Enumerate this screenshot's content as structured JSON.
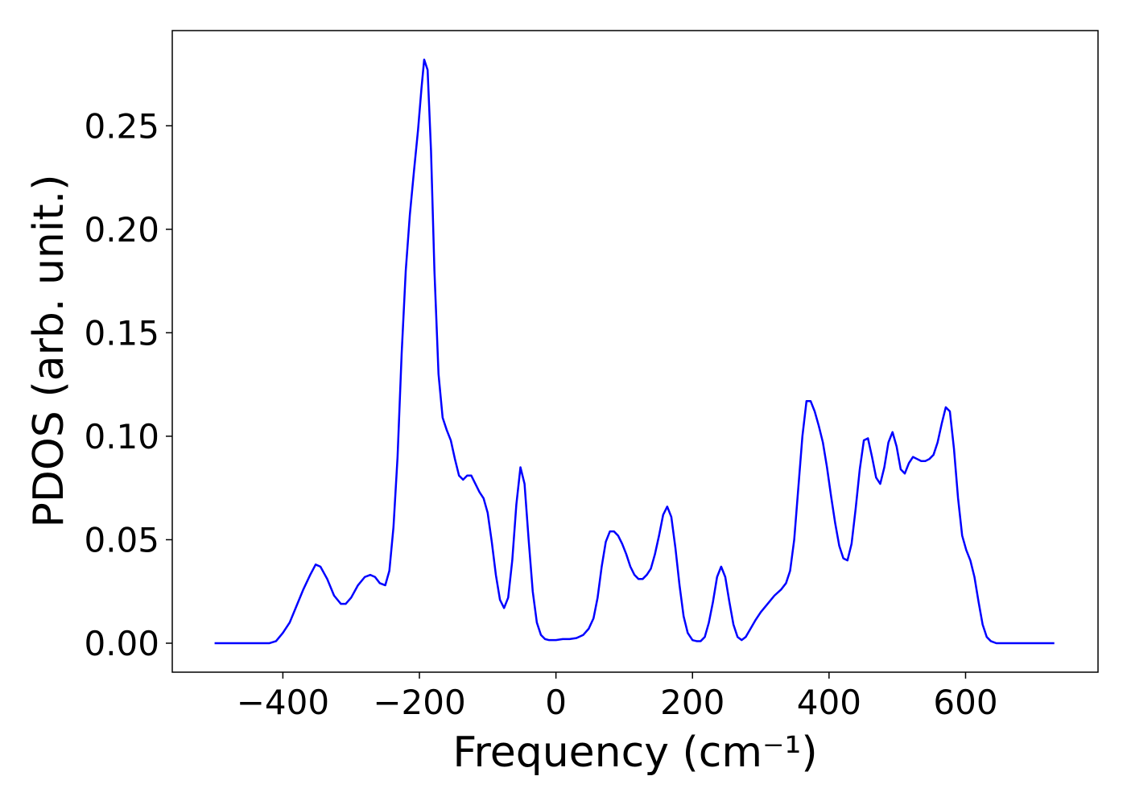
{
  "chart_data": {
    "type": "line",
    "xlabel": "Frequency (cm⁻¹)",
    "ylabel": "PDOS (arb. unit.)",
    "color": "#0000ff",
    "x": [
      -500,
      -420,
      -410,
      -400,
      -390,
      -380,
      -370,
      -360,
      -352,
      -345,
      -335,
      -325,
      -315,
      -308,
      -300,
      -290,
      -280,
      -272,
      -265,
      -258,
      -250,
      -244,
      -238,
      -232,
      -226,
      -220,
      -214,
      -208,
      -202,
      -197,
      -193,
      -188,
      -183,
      -178,
      -172,
      -166,
      -160,
      -154,
      -148,
      -142,
      -136,
      -130,
      -124,
      -118,
      -112,
      -106,
      -100,
      -94,
      -88,
      -82,
      -76,
      -70,
      -64,
      -58,
      -52,
      -46,
      -40,
      -34,
      -28,
      -22,
      -16,
      -10,
      0,
      10,
      20,
      30,
      40,
      48,
      55,
      61,
      67,
      73,
      79,
      85,
      91,
      97,
      103,
      109,
      115,
      121,
      127,
      133,
      139,
      145,
      151,
      157,
      163,
      169,
      175,
      181,
      187,
      193,
      200,
      206,
      212,
      218,
      224,
      230,
      236,
      242,
      248,
      254,
      260,
      266,
      272,
      278,
      285,
      292,
      300,
      310,
      320,
      330,
      337,
      343,
      349,
      355,
      361,
      367,
      373,
      379,
      385,
      391,
      397,
      403,
      409,
      415,
      421,
      427,
      433,
      439,
      445,
      451,
      457,
      463,
      469,
      475,
      481,
      487,
      493,
      499,
      505,
      511,
      517,
      523,
      529,
      535,
      541,
      547,
      553,
      559,
      565,
      571,
      577,
      583,
      589,
      595,
      601,
      607,
      613,
      619,
      625,
      631,
      637,
      645,
      730
    ],
    "values": [
      0,
      0,
      0.001,
      0.005,
      0.01,
      0.018,
      0.026,
      0.033,
      0.038,
      0.037,
      0.031,
      0.023,
      0.019,
      0.019,
      0.022,
      0.028,
      0.032,
      0.033,
      0.032,
      0.029,
      0.028,
      0.035,
      0.056,
      0.09,
      0.14,
      0.18,
      0.207,
      0.228,
      0.248,
      0.268,
      0.282,
      0.277,
      0.238,
      0.18,
      0.13,
      0.109,
      0.103,
      0.098,
      0.089,
      0.081,
      0.079,
      0.081,
      0.081,
      0.077,
      0.073,
      0.07,
      0.063,
      0.049,
      0.033,
      0.021,
      0.017,
      0.022,
      0.04,
      0.067,
      0.085,
      0.077,
      0.05,
      0.025,
      0.01,
      0.004,
      0.002,
      0.0015,
      0.0015,
      0.002,
      0.002,
      0.0025,
      0.004,
      0.007,
      0.012,
      0.022,
      0.037,
      0.049,
      0.054,
      0.054,
      0.052,
      0.048,
      0.043,
      0.037,
      0.033,
      0.031,
      0.031,
      0.033,
      0.036,
      0.043,
      0.052,
      0.062,
      0.066,
      0.061,
      0.046,
      0.028,
      0.013,
      0.005,
      0.0015,
      0.001,
      0.001,
      0.003,
      0.01,
      0.02,
      0.032,
      0.037,
      0.032,
      0.02,
      0.009,
      0.003,
      0.0015,
      0.003,
      0.007,
      0.011,
      0.015,
      0.019,
      0.023,
      0.026,
      0.029,
      0.035,
      0.05,
      0.075,
      0.1,
      0.117,
      0.117,
      0.112,
      0.105,
      0.097,
      0.085,
      0.071,
      0.058,
      0.047,
      0.041,
      0.04,
      0.048,
      0.065,
      0.084,
      0.098,
      0.099,
      0.09,
      0.08,
      0.077,
      0.085,
      0.097,
      0.102,
      0.095,
      0.084,
      0.082,
      0.087,
      0.09,
      0.089,
      0.088,
      0.088,
      0.089,
      0.091,
      0.097,
      0.106,
      0.114,
      0.112,
      0.094,
      0.07,
      0.052,
      0.045,
      0.04,
      0.032,
      0.02,
      0.009,
      0.003,
      0.001,
      0,
      0
    ],
    "xlim": [
      -562,
      794
    ],
    "ylim": [
      -0.014,
      0.296
    ],
    "xticks": [
      {
        "value": -400,
        "label": "−400"
      },
      {
        "value": -200,
        "label": "−200"
      },
      0,
      200,
      400,
      600
    ],
    "yticks": [
      {
        "value": 0,
        "label": "0.00"
      },
      {
        "value": 0.05,
        "label": "0.05"
      },
      {
        "value": 0.1,
        "label": "0.10"
      },
      {
        "value": 0.15,
        "label": "0.15"
      },
      {
        "value": 0.2,
        "label": "0.20"
      },
      {
        "value": 0.25,
        "label": "0.25"
      }
    ]
  }
}
